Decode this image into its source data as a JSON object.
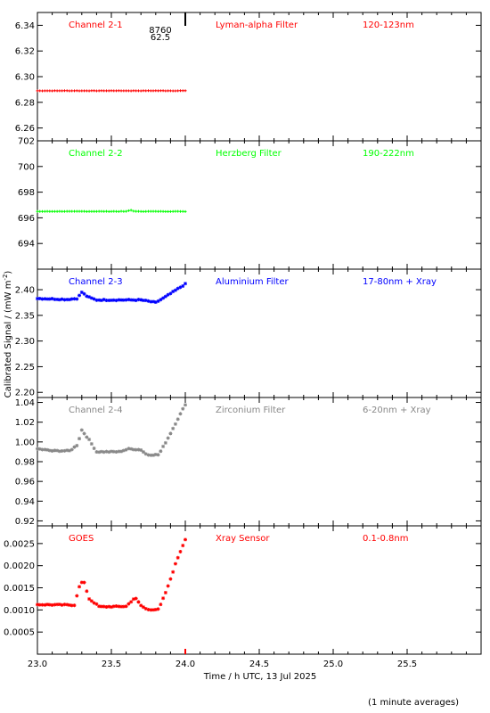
{
  "figure": {
    "ylabel": "Calibrated Signal / (mW m",
    "ylabel_sup": "-2",
    "ylabel_close": ")",
    "xlabel": "Time / h UTC, 13 Jul 2025",
    "footnote": "(1 minute averages)",
    "annotation_top": "8760",
    "annotation_bottom": "62.5"
  },
  "chart_data": [
    {
      "type": "scatter",
      "channel": "Channel 2-1",
      "filter": "Lyman-alpha Filter",
      "band": "120-123nm",
      "color": "#ff0000",
      "marker": "plus",
      "xlim": [
        23.0,
        26.0
      ],
      "ylim": [
        6.25,
        6.35
      ],
      "yticks": [
        6.26,
        6.28,
        6.3,
        6.32,
        6.34
      ],
      "ytick_labels": [
        "6.26",
        "6.28",
        "6.30",
        "6.32",
        "6.34"
      ],
      "keypoints": [
        [
          23.0,
          6.289
        ],
        [
          24.0,
          6.289
        ]
      ]
    },
    {
      "type": "scatter",
      "channel": "Channel 2-2",
      "filter": "Herzberg Filter",
      "band": "190-222nm",
      "color": "#00ff00",
      "marker": "plus",
      "xlim": [
        23.0,
        26.0
      ],
      "ylim": [
        692.0,
        702.0
      ],
      "yticks": [
        694,
        696,
        698,
        700,
        702
      ],
      "ytick_labels": [
        "694",
        "696",
        "698",
        "700",
        "702"
      ],
      "keypoints": [
        [
          23.0,
          696.5
        ],
        [
          23.6,
          696.5
        ],
        [
          23.63,
          696.6
        ],
        [
          23.66,
          696.5
        ],
        [
          24.0,
          696.5
        ]
      ]
    },
    {
      "type": "scatter",
      "channel": "Channel 2-3",
      "filter": "Aluminium Filter",
      "band": "17-80nm + Xray",
      "color": "#0000ff",
      "marker": "star",
      "xlim": [
        23.0,
        26.0
      ],
      "ylim": [
        2.19,
        2.44
      ],
      "yticks": [
        2.2,
        2.25,
        2.3,
        2.35,
        2.4
      ],
      "ytick_labels": [
        "2.20",
        "2.25",
        "2.30",
        "2.35",
        "2.40"
      ],
      "keypoints": [
        [
          23.0,
          2.383
        ],
        [
          23.2,
          2.381
        ],
        [
          23.27,
          2.383
        ],
        [
          23.3,
          2.395
        ],
        [
          23.34,
          2.386
        ],
        [
          23.4,
          2.38
        ],
        [
          23.7,
          2.38
        ],
        [
          23.8,
          2.375
        ],
        [
          23.86,
          2.385
        ],
        [
          24.0,
          2.411
        ]
      ]
    },
    {
      "type": "scatter",
      "channel": "Channel 2-4",
      "filter": "Zirconium Filter",
      "band": "6-20nm + Xray",
      "color": "#888888",
      "marker": "star",
      "xlim": [
        23.0,
        26.0
      ],
      "ylim": [
        0.915,
        1.045
      ],
      "yticks": [
        0.92,
        0.94,
        0.96,
        0.98,
        1.0,
        1.02,
        1.04
      ],
      "ytick_labels": [
        "0.92",
        "0.94",
        "0.96",
        "0.98",
        "1.00",
        "1.02",
        "1.04"
      ],
      "keypoints": [
        [
          23.0,
          0.993
        ],
        [
          23.1,
          0.991
        ],
        [
          23.22,
          0.991
        ],
        [
          23.27,
          0.997
        ],
        [
          23.3,
          1.012
        ],
        [
          23.35,
          1.002
        ],
        [
          23.4,
          0.99
        ],
        [
          23.55,
          0.99
        ],
        [
          23.62,
          0.993
        ],
        [
          23.7,
          0.992
        ],
        [
          23.74,
          0.987
        ],
        [
          23.82,
          0.987
        ],
        [
          23.88,
          1.003
        ],
        [
          24.0,
          1.038
        ]
      ]
    },
    {
      "type": "scatter",
      "channel": "GOES",
      "filter": "Xray Sensor",
      "band": "0.1-0.8nm",
      "color": "#ff0000",
      "marker": "star",
      "xlim": [
        23.0,
        26.0
      ],
      "ylim": [
        0.0,
        0.0029
      ],
      "yticks": [
        0.0005,
        0.001,
        0.0015,
        0.002,
        0.0025
      ],
      "ytick_labels": [
        "0.0005",
        "0.0010",
        "0.0015",
        "0.0020",
        "0.0025"
      ],
      "xticks": [
        23.0,
        23.5,
        24.0,
        24.5,
        25.0,
        25.5
      ],
      "xtick_labels": [
        "23.0",
        "23.5",
        "24.0",
        "24.5",
        "25.0",
        "25.5"
      ],
      "keypoints": [
        [
          23.0,
          0.00112
        ],
        [
          23.25,
          0.00111
        ],
        [
          23.28,
          0.0015
        ],
        [
          23.31,
          0.00168
        ],
        [
          23.35,
          0.00125
        ],
        [
          23.42,
          0.00107
        ],
        [
          23.6,
          0.00108
        ],
        [
          23.66,
          0.00128
        ],
        [
          23.7,
          0.0011
        ],
        [
          23.74,
          0.00101
        ],
        [
          23.82,
          0.00101
        ],
        [
          23.88,
          0.0015
        ],
        [
          23.94,
          0.0021
        ],
        [
          24.0,
          0.0026
        ]
      ]
    }
  ]
}
